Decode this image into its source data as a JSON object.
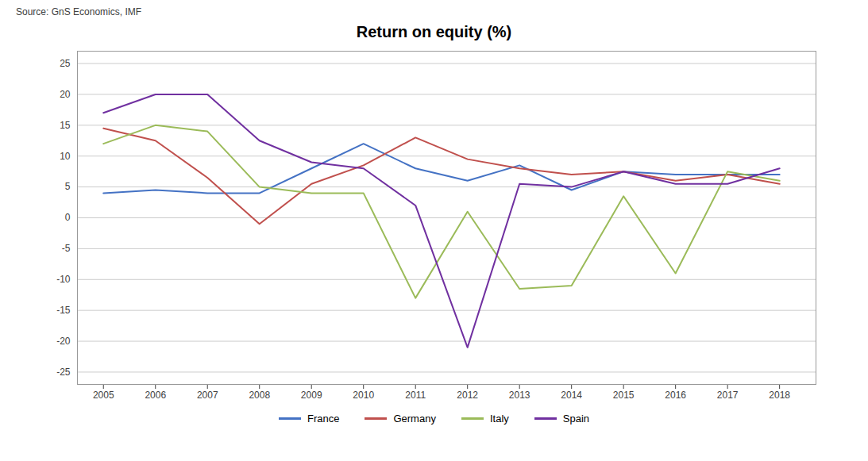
{
  "chart_data": {
    "type": "line",
    "title": "Return on equity (%)",
    "source": "Source: GnS Economics, IMF",
    "x": [
      2005,
      2006,
      2007,
      2008,
      2009,
      2010,
      2011,
      2012,
      2013,
      2014,
      2015,
      2016,
      2017,
      2018
    ],
    "series": [
      {
        "name": "France",
        "color": "#4472C4",
        "values": [
          4.0,
          4.5,
          4.0,
          4.0,
          8.0,
          12.0,
          8.0,
          6.0,
          8.5,
          4.5,
          7.5,
          7.0,
          7.0,
          7.0
        ]
      },
      {
        "name": "Germany",
        "color": "#C0504D",
        "values": [
          14.5,
          12.5,
          6.5,
          -1.0,
          5.5,
          8.5,
          13.0,
          9.5,
          8.0,
          7.0,
          7.5,
          6.0,
          7.0,
          5.5
        ]
      },
      {
        "name": "Italy",
        "color": "#9BBB59",
        "values": [
          12.0,
          15.0,
          14.0,
          5.0,
          4.0,
          4.0,
          -13.0,
          1.0,
          -11.5,
          -11.0,
          3.5,
          -9.0,
          7.5,
          6.0
        ]
      },
      {
        "name": "Spain",
        "color": "#7030A0",
        "values": [
          17.0,
          20.0,
          20.0,
          12.5,
          9.0,
          8.0,
          2.0,
          -21.0,
          5.5,
          5.0,
          7.5,
          5.5,
          5.5,
          8.0
        ]
      }
    ],
    "xlim": [
      2004.5,
      2018.7
    ],
    "xticks": [
      2005,
      2006,
      2007,
      2008,
      2009,
      2010,
      2011,
      2012,
      2013,
      2014,
      2015,
      2016,
      2017,
      2018
    ],
    "ylim": [
      -27,
      27
    ],
    "yticks": [
      -25,
      -20,
      -15,
      -10,
      -5,
      0,
      5,
      10,
      15,
      20,
      25
    ],
    "grid": true,
    "legend": "bottom"
  }
}
